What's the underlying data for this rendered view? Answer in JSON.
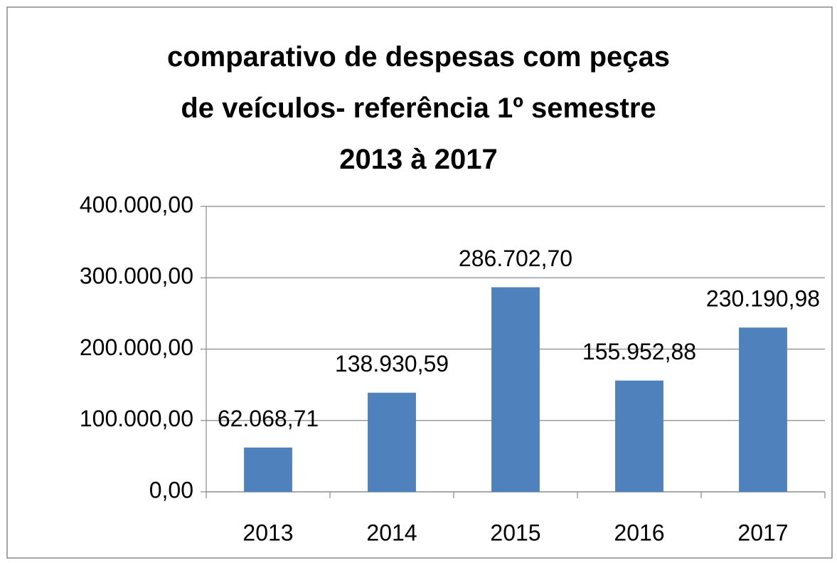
{
  "chart_data": {
    "type": "bar",
    "title": "comparativo de despesas com peças\nde veículos- referência 1º semestre\n2013 à 2017",
    "categories": [
      "2013",
      "2014",
      "2015",
      "2016",
      "2017"
    ],
    "values": [
      62068.71,
      138930.59,
      286702.7,
      155952.88,
      230190.98
    ],
    "value_labels": [
      "62.068,71",
      "138.930,59",
      "286.702,70",
      "155.952,88",
      "230.190,98"
    ],
    "color": "#4f81bd",
    "ylim": [
      0,
      400000
    ],
    "yticks": [
      {
        "value": 0,
        "label": "0,00"
      },
      {
        "value": 100000,
        "label": "100.000,00"
      },
      {
        "value": 200000,
        "label": "200.000,00"
      },
      {
        "value": 300000,
        "label": "300.000,00"
      },
      {
        "value": 400000,
        "label": "400.000,00"
      }
    ],
    "grid": true
  }
}
